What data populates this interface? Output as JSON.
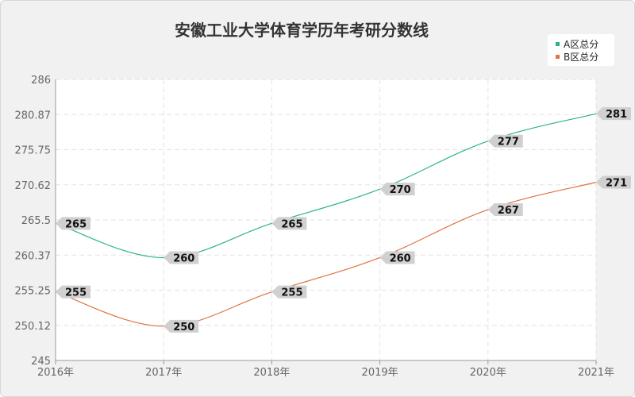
{
  "chart_data": {
    "type": "line",
    "title": "安徽工业大学体育学历年考研分数线",
    "categories": [
      "2016年",
      "2017年",
      "2018年",
      "2019年",
      "2020年",
      "2021年"
    ],
    "y_ticks": [
      "286",
      "280.87",
      "275.75",
      "270.62",
      "265.5",
      "260.37",
      "255.25",
      "250.12",
      "245"
    ],
    "ylim": [
      245,
      286
    ],
    "grid": true,
    "legend_position": "top-right",
    "series": [
      {
        "name": "A区总分",
        "color": "#2db38a",
        "values": [
          265,
          260,
          265,
          270,
          277,
          281
        ]
      },
      {
        "name": "B区总分",
        "color": "#e0733f",
        "values": [
          255,
          250,
          255,
          260,
          267,
          271
        ]
      }
    ]
  }
}
